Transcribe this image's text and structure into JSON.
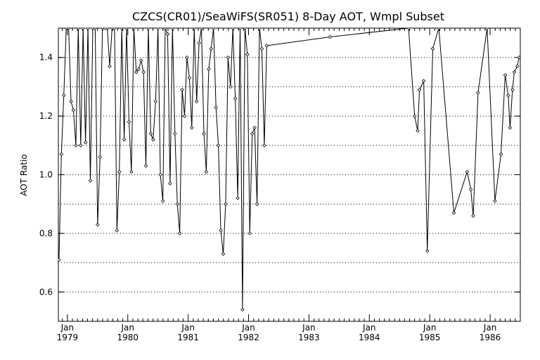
{
  "chart_data": {
    "type": "line",
    "title": "CZCS(CR01)/SeaWiFS(SR051) 8-Day AOT, Wmpl Subset",
    "xlabel": "",
    "ylabel": "AOT Ratio",
    "xlim": [
      1978.85,
      1986.5
    ],
    "ylim": [
      0.5,
      1.5
    ],
    "grid": "horizontal dotted",
    "yticks": [
      "0.6",
      "0.8",
      "1.0",
      "1.2",
      "1.4"
    ],
    "xticks": [
      {
        "month": "Jan",
        "year": "1979",
        "value": 1979.0
      },
      {
        "month": "Jan",
        "year": "1980",
        "value": 1980.0
      },
      {
        "month": "Jan",
        "year": "1981",
        "value": 1981.0
      },
      {
        "month": "Jan",
        "year": "1982",
        "value": 1982.0
      },
      {
        "month": "Jan",
        "year": "1983",
        "value": 1983.0
      },
      {
        "month": "Jan",
        "year": "1984",
        "value": 1984.0
      },
      {
        "month": "Jan",
        "year": "1985",
        "value": 1985.0
      },
      {
        "month": "Jan",
        "year": "1986",
        "value": 1986.0
      }
    ],
    "series": [
      {
        "color": "#000000",
        "marker": "diamond",
        "x": [
          1978.86,
          1978.9,
          1978.94,
          1978.98,
          1979.02,
          1979.06,
          1979.1,
          1979.14,
          1979.18,
          1979.22,
          1979.26,
          1979.3,
          1979.34,
          1979.38,
          1979.42,
          1979.46,
          1979.5,
          1979.54,
          1979.58,
          1979.62,
          1979.66,
          1979.7,
          1979.74,
          1979.78,
          1979.82,
          1979.86,
          1979.9,
          1979.94,
          1979.98,
          1980.02,
          1980.06,
          1980.1,
          1980.14,
          1980.18,
          1980.22,
          1980.26,
          1980.3,
          1980.34,
          1980.38,
          1980.42,
          1980.46,
          1980.5,
          1980.54,
          1980.58,
          1980.62,
          1980.66,
          1980.7,
          1980.74,
          1980.78,
          1980.82,
          1980.86,
          1980.9,
          1980.94,
          1980.98,
          1981.02,
          1981.06,
          1981.1,
          1981.14,
          1981.18,
          1981.22,
          1981.26,
          1981.3,
          1981.34,
          1981.38,
          1981.42,
          1981.46,
          1981.5,
          1981.54,
          1981.58,
          1981.62,
          1981.66,
          1981.7,
          1981.74,
          1981.78,
          1981.82,
          1981.86,
          1981.9,
          1981.94,
          1981.98,
          1982.02,
          1982.06,
          1982.1,
          1982.14,
          1982.18,
          1982.22,
          1982.26,
          1982.3,
          1983.35,
          1984.65,
          1984.75,
          1984.8,
          1984.83,
          1984.9,
          1984.96,
          1985.05,
          1985.15,
          1985.4,
          1985.62,
          1985.68,
          1985.72,
          1985.8,
          1985.95,
          1986.08,
          1986.18,
          1986.25,
          1986.3,
          1986.33,
          1986.37,
          1986.4,
          1986.45,
          1986.48
        ],
        "y": [
          0.71,
          1.07,
          1.27,
          1.5,
          1.5,
          1.25,
          1.22,
          1.1,
          1.5,
          1.1,
          1.5,
          1.11,
          1.5,
          0.98,
          1.5,
          1.5,
          0.83,
          1.06,
          1.5,
          1.5,
          1.5,
          1.37,
          1.5,
          1.5,
          0.81,
          1.01,
          1.5,
          1.12,
          1.5,
          1.18,
          1.01,
          1.5,
          1.35,
          1.36,
          1.39,
          1.35,
          1.03,
          1.5,
          1.14,
          1.12,
          1.25,
          1.5,
          1.0,
          0.91,
          1.5,
          1.48,
          0.97,
          1.5,
          1.14,
          0.9,
          0.8,
          1.29,
          1.2,
          1.4,
          1.33,
          1.16,
          1.5,
          1.25,
          1.45,
          1.5,
          1.14,
          1.01,
          1.36,
          1.43,
          1.5,
          1.23,
          1.1,
          0.81,
          0.73,
          0.9,
          1.4,
          1.3,
          1.5,
          1.26,
          0.92,
          1.5,
          0.54,
          1.5,
          1.41,
          0.8,
          1.14,
          1.16,
          0.9,
          1.5,
          1.43,
          1.1,
          1.44,
          1.47,
          1.5,
          1.2,
          1.15,
          1.29,
          1.32,
          0.74,
          1.43,
          1.5,
          0.87,
          1.01,
          0.95,
          0.86,
          1.28,
          1.5,
          0.91,
          1.07,
          1.34,
          1.27,
          1.16,
          1.29,
          1.35,
          1.37,
          1.4
        ]
      }
    ]
  }
}
